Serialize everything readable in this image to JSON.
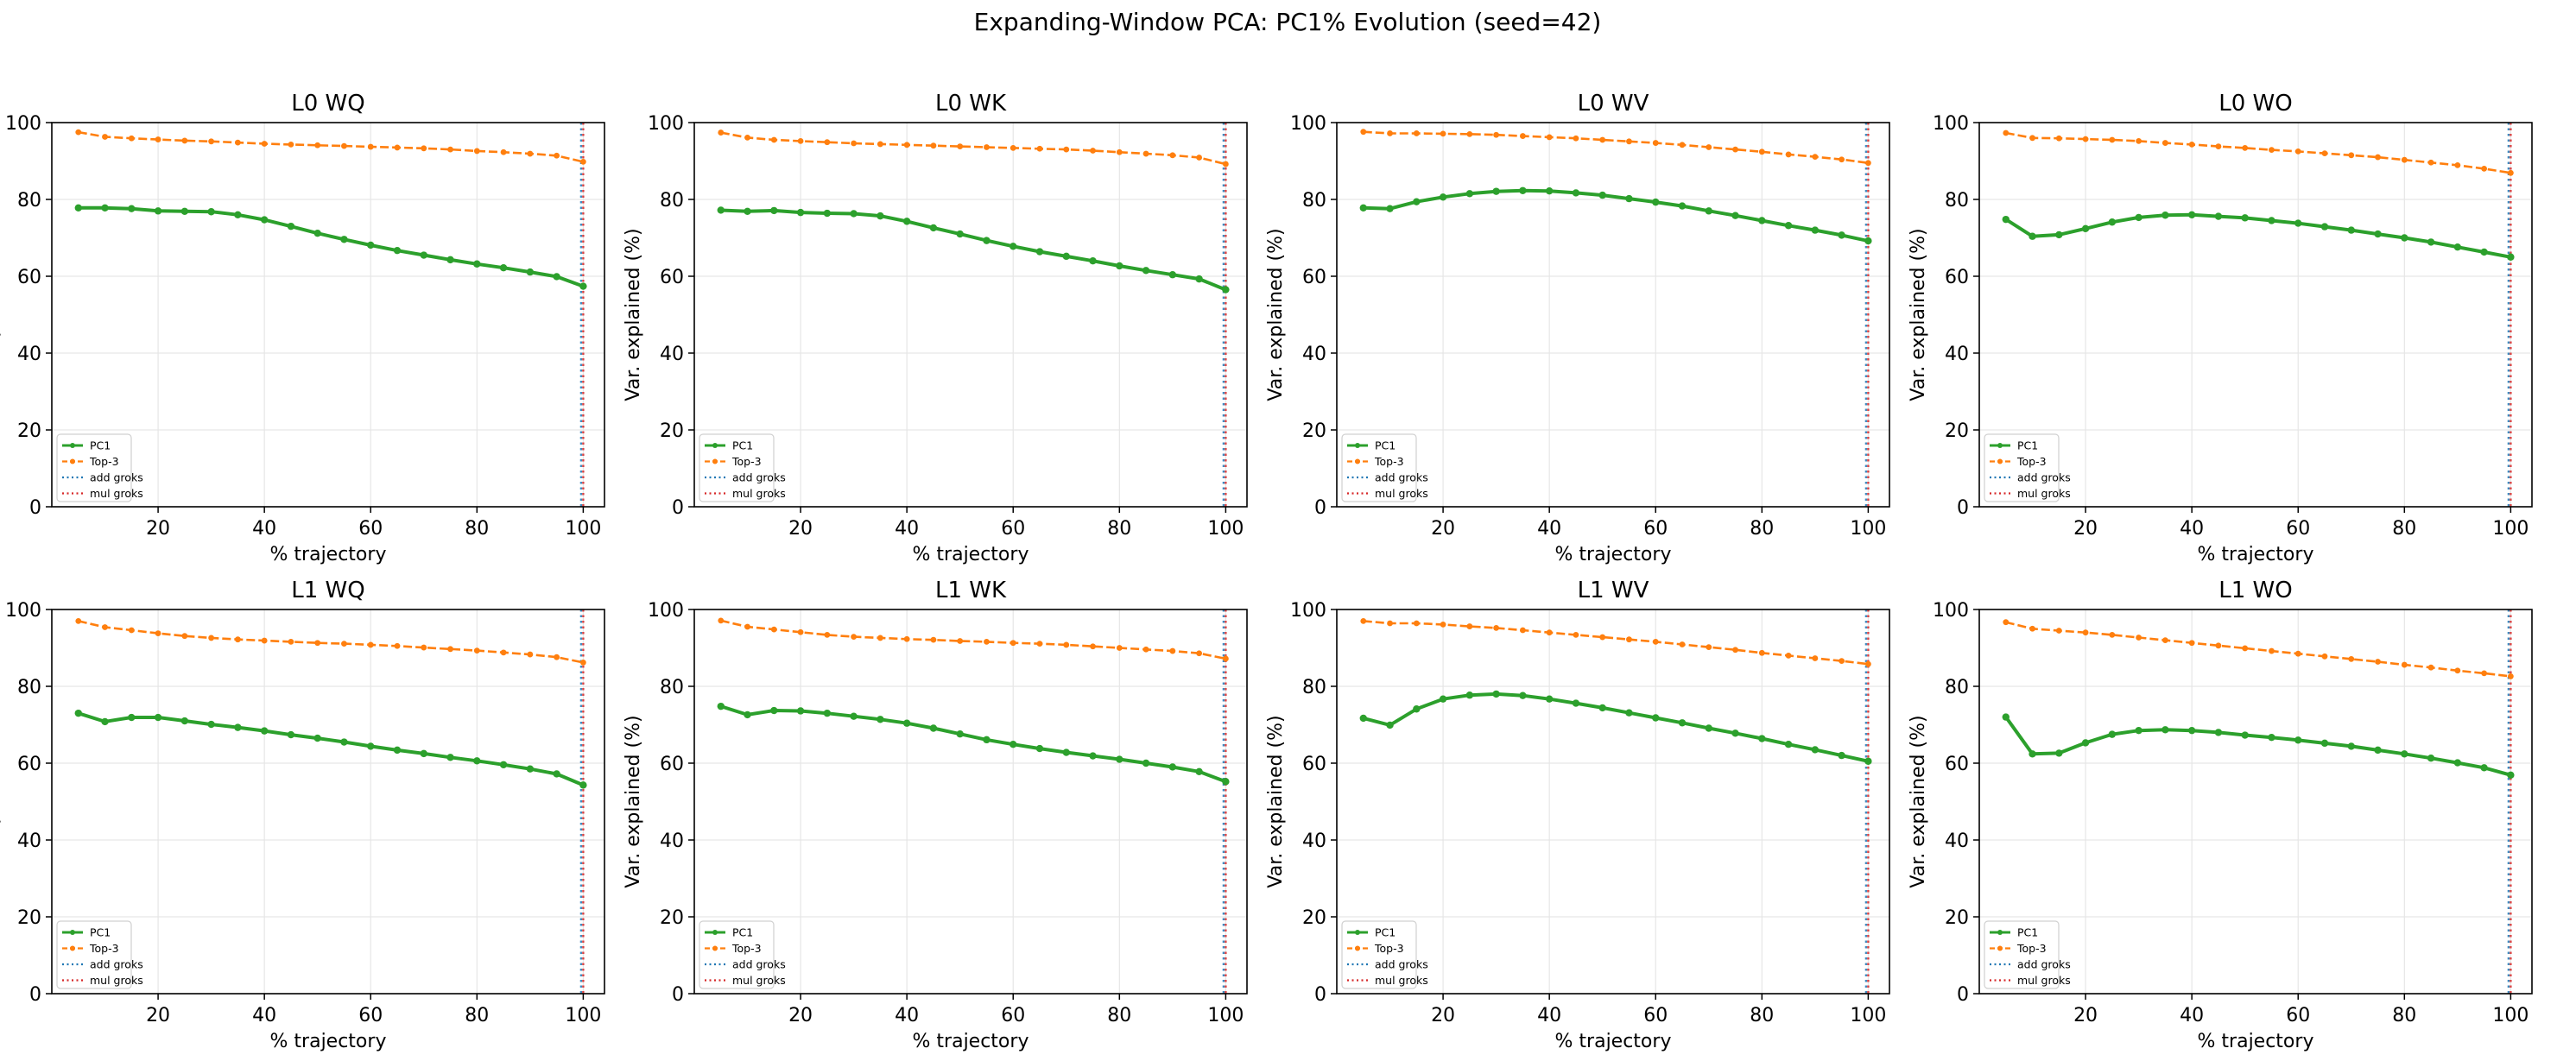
{
  "figure": {
    "suptitle": "Expanding-Window PCA: PC1% Evolution (seed=42)"
  },
  "colors": {
    "pc1": "#2ca02c",
    "top3": "#ff7f0e",
    "add_groks": "#1f77b4",
    "mul_groks": "#d62728",
    "grid": "#e6e6e6",
    "axes": "#000000"
  },
  "chart_data": [
    {
      "type": "line",
      "title": "L0 WQ",
      "xlabel": "% trajectory",
      "ylabel": "Var. explained (%)",
      "xlim": [
        0,
        104
      ],
      "ylim": [
        0,
        100
      ],
      "xticks": [
        20,
        40,
        60,
        80,
        100
      ],
      "yticks": [
        0,
        20,
        40,
        60,
        80,
        100
      ],
      "grid": true,
      "legend": {
        "placement": "lower-left",
        "entries": [
          "PC1",
          "Top-3",
          "add groks",
          "mul groks"
        ]
      },
      "x": [
        5,
        10,
        15,
        20,
        25,
        30,
        35,
        40,
        45,
        50,
        55,
        60,
        65,
        70,
        75,
        80,
        85,
        90,
        95,
        100
      ],
      "series": [
        {
          "name": "PC1",
          "values": [
            77.8,
            77.8,
            77.6,
            77.0,
            76.9,
            76.8,
            76.0,
            74.7,
            73.0,
            71.2,
            69.6,
            68.1,
            66.7,
            65.5,
            64.3,
            63.2,
            62.2,
            61.1,
            59.9,
            57.4
          ]
        },
        {
          "name": "Top-3",
          "values": [
            97.5,
            96.3,
            95.9,
            95.6,
            95.3,
            95.1,
            94.8,
            94.5,
            94.3,
            94.1,
            93.9,
            93.7,
            93.5,
            93.3,
            93.0,
            92.6,
            92.3,
            91.9,
            91.4,
            89.8
          ]
        }
      ],
      "vlines": [
        {
          "name": "add groks",
          "x": 99.6
        },
        {
          "name": "mul groks",
          "x": 100.0
        }
      ]
    },
    {
      "type": "line",
      "title": "L0 WK",
      "xlabel": "% trajectory",
      "ylabel": "Var. explained (%)",
      "xlim": [
        0,
        104
      ],
      "ylim": [
        0,
        100
      ],
      "xticks": [
        20,
        40,
        60,
        80,
        100
      ],
      "yticks": [
        0,
        20,
        40,
        60,
        80,
        100
      ],
      "grid": true,
      "legend": {
        "placement": "lower-left",
        "entries": [
          "PC1",
          "Top-3",
          "add groks",
          "mul groks"
        ]
      },
      "x": [
        5,
        10,
        15,
        20,
        25,
        30,
        35,
        40,
        45,
        50,
        55,
        60,
        65,
        70,
        75,
        80,
        85,
        90,
        95,
        100
      ],
      "series": [
        {
          "name": "PC1",
          "values": [
            77.2,
            76.9,
            77.1,
            76.6,
            76.4,
            76.3,
            75.7,
            74.3,
            72.6,
            71.0,
            69.3,
            67.8,
            66.4,
            65.2,
            64.0,
            62.7,
            61.5,
            60.4,
            59.3,
            56.5
          ]
        },
        {
          "name": "Top-3",
          "values": [
            97.4,
            96.1,
            95.5,
            95.2,
            94.9,
            94.6,
            94.4,
            94.2,
            94.0,
            93.8,
            93.6,
            93.4,
            93.2,
            93.0,
            92.7,
            92.3,
            91.9,
            91.5,
            90.9,
            89.2
          ]
        }
      ],
      "vlines": [
        {
          "name": "add groks",
          "x": 99.6
        },
        {
          "name": "mul groks",
          "x": 100.0
        }
      ]
    },
    {
      "type": "line",
      "title": "L0 WV",
      "xlabel": "% trajectory",
      "ylabel": "Var. explained (%)",
      "xlim": [
        0,
        104
      ],
      "ylim": [
        0,
        100
      ],
      "xticks": [
        20,
        40,
        60,
        80,
        100
      ],
      "yticks": [
        0,
        20,
        40,
        60,
        80,
        100
      ],
      "grid": true,
      "legend": {
        "placement": "lower-left",
        "entries": [
          "PC1",
          "Top-3",
          "add groks",
          "mul groks"
        ]
      },
      "x": [
        5,
        10,
        15,
        20,
        25,
        30,
        35,
        40,
        45,
        50,
        55,
        60,
        65,
        70,
        75,
        80,
        85,
        90,
        95,
        100
      ],
      "series": [
        {
          "name": "PC1",
          "values": [
            77.8,
            77.6,
            79.4,
            80.6,
            81.5,
            82.1,
            82.3,
            82.2,
            81.7,
            81.1,
            80.2,
            79.3,
            78.3,
            77.0,
            75.8,
            74.5,
            73.2,
            72.0,
            70.7,
            69.2
          ]
        },
        {
          "name": "Top-3",
          "values": [
            97.6,
            97.2,
            97.2,
            97.1,
            97.0,
            96.8,
            96.5,
            96.2,
            95.9,
            95.5,
            95.1,
            94.7,
            94.2,
            93.6,
            93.0,
            92.4,
            91.7,
            91.1,
            90.4,
            89.5
          ]
        }
      ],
      "vlines": [
        {
          "name": "add groks",
          "x": 99.6
        },
        {
          "name": "mul groks",
          "x": 100.0
        }
      ]
    },
    {
      "type": "line",
      "title": "L0 WO",
      "xlabel": "% trajectory",
      "ylabel": "Var. explained (%)",
      "xlim": [
        0,
        104
      ],
      "ylim": [
        0,
        100
      ],
      "xticks": [
        20,
        40,
        60,
        80,
        100
      ],
      "yticks": [
        0,
        20,
        40,
        60,
        80,
        100
      ],
      "grid": true,
      "legend": {
        "placement": "lower-left",
        "entries": [
          "PC1",
          "Top-3",
          "add groks",
          "mul groks"
        ]
      },
      "x": [
        5,
        10,
        15,
        20,
        25,
        30,
        35,
        40,
        45,
        50,
        55,
        60,
        65,
        70,
        75,
        80,
        85,
        90,
        95,
        100
      ],
      "series": [
        {
          "name": "PC1",
          "values": [
            74.8,
            70.4,
            70.8,
            72.4,
            74.1,
            75.3,
            75.9,
            76.0,
            75.6,
            75.2,
            74.5,
            73.8,
            72.9,
            72.0,
            71.0,
            70.0,
            68.9,
            67.6,
            66.3,
            65.0
          ]
        },
        {
          "name": "Top-3",
          "values": [
            97.3,
            96.0,
            95.9,
            95.7,
            95.5,
            95.2,
            94.7,
            94.3,
            93.8,
            93.4,
            92.9,
            92.5,
            92.0,
            91.5,
            91.0,
            90.3,
            89.6,
            88.9,
            88.0,
            86.9
          ]
        }
      ],
      "vlines": [
        {
          "name": "add groks",
          "x": 99.6
        },
        {
          "name": "mul groks",
          "x": 100.0
        }
      ]
    },
    {
      "type": "line",
      "title": "L1 WQ",
      "xlabel": "% trajectory",
      "ylabel": "Var. explained (%)",
      "xlim": [
        0,
        104
      ],
      "ylim": [
        0,
        100
      ],
      "xticks": [
        20,
        40,
        60,
        80,
        100
      ],
      "yticks": [
        0,
        20,
        40,
        60,
        80,
        100
      ],
      "grid": true,
      "legend": {
        "placement": "lower-left",
        "entries": [
          "PC1",
          "Top-3",
          "add groks",
          "mul groks"
        ]
      },
      "x": [
        5,
        10,
        15,
        20,
        25,
        30,
        35,
        40,
        45,
        50,
        55,
        60,
        65,
        70,
        75,
        80,
        85,
        90,
        95,
        100
      ],
      "series": [
        {
          "name": "PC1",
          "values": [
            73.0,
            70.8,
            71.9,
            71.9,
            71.0,
            70.1,
            69.3,
            68.4,
            67.4,
            66.5,
            65.5,
            64.4,
            63.4,
            62.5,
            61.5,
            60.6,
            59.6,
            58.5,
            57.2,
            54.3
          ]
        },
        {
          "name": "Top-3",
          "values": [
            97.0,
            95.4,
            94.6,
            93.8,
            93.1,
            92.6,
            92.2,
            91.9,
            91.6,
            91.3,
            91.1,
            90.8,
            90.5,
            90.1,
            89.7,
            89.3,
            88.8,
            88.3,
            87.6,
            86.2
          ]
        }
      ],
      "vlines": [
        {
          "name": "add groks",
          "x": 99.6
        },
        {
          "name": "mul groks",
          "x": 100.0
        }
      ]
    },
    {
      "type": "line",
      "title": "L1 WK",
      "xlabel": "% trajectory",
      "ylabel": "Var. explained (%)",
      "xlim": [
        0,
        104
      ],
      "ylim": [
        0,
        100
      ],
      "xticks": [
        20,
        40,
        60,
        80,
        100
      ],
      "yticks": [
        0,
        20,
        40,
        60,
        80,
        100
      ],
      "grid": true,
      "legend": {
        "placement": "lower-left",
        "entries": [
          "PC1",
          "Top-3",
          "add groks",
          "mul groks"
        ]
      },
      "x": [
        5,
        10,
        15,
        20,
        25,
        30,
        35,
        40,
        45,
        50,
        55,
        60,
        65,
        70,
        75,
        80,
        85,
        90,
        95,
        100
      ],
      "series": [
        {
          "name": "PC1",
          "values": [
            74.8,
            72.6,
            73.7,
            73.6,
            73.0,
            72.2,
            71.4,
            70.4,
            69.1,
            67.6,
            66.1,
            64.9,
            63.8,
            62.8,
            61.9,
            61.0,
            60.0,
            59.0,
            57.8,
            55.2
          ]
        },
        {
          "name": "Top-3",
          "values": [
            97.1,
            95.5,
            94.8,
            94.1,
            93.4,
            92.9,
            92.6,
            92.3,
            92.1,
            91.8,
            91.6,
            91.3,
            91.1,
            90.8,
            90.4,
            90.0,
            89.6,
            89.2,
            88.6,
            87.2
          ]
        }
      ],
      "vlines": [
        {
          "name": "add groks",
          "x": 99.6
        },
        {
          "name": "mul groks",
          "x": 100.0
        }
      ]
    },
    {
      "type": "line",
      "title": "L1 WV",
      "xlabel": "% trajectory",
      "ylabel": "Var. explained (%)",
      "xlim": [
        0,
        104
      ],
      "ylim": [
        0,
        100
      ],
      "xticks": [
        20,
        40,
        60,
        80,
        100
      ],
      "yticks": [
        0,
        20,
        40,
        60,
        80,
        100
      ],
      "grid": true,
      "legend": {
        "placement": "lower-left",
        "entries": [
          "PC1",
          "Top-3",
          "add groks",
          "mul groks"
        ]
      },
      "x": [
        5,
        10,
        15,
        20,
        25,
        30,
        35,
        40,
        45,
        50,
        55,
        60,
        65,
        70,
        75,
        80,
        85,
        90,
        95,
        100
      ],
      "series": [
        {
          "name": "PC1",
          "values": [
            71.7,
            69.9,
            74.1,
            76.7,
            77.7,
            78.0,
            77.6,
            76.7,
            75.6,
            74.4,
            73.1,
            71.8,
            70.5,
            69.1,
            67.8,
            66.4,
            64.9,
            63.5,
            62.0,
            60.5
          ]
        },
        {
          "name": "Top-3",
          "values": [
            97.0,
            96.4,
            96.4,
            96.1,
            95.6,
            95.2,
            94.6,
            94.0,
            93.4,
            92.8,
            92.2,
            91.6,
            90.9,
            90.2,
            89.5,
            88.7,
            88.0,
            87.3,
            86.6,
            85.8
          ]
        }
      ],
      "vlines": [
        {
          "name": "add groks",
          "x": 99.6
        },
        {
          "name": "mul groks",
          "x": 100.0
        }
      ]
    },
    {
      "type": "line",
      "title": "L1 WO",
      "xlabel": "% trajectory",
      "ylabel": "Var. explained (%)",
      "xlim": [
        0,
        104
      ],
      "ylim": [
        0,
        100
      ],
      "xticks": [
        20,
        40,
        60,
        80,
        100
      ],
      "yticks": [
        0,
        20,
        40,
        60,
        80,
        100
      ],
      "grid": true,
      "legend": {
        "placement": "lower-left",
        "entries": [
          "PC1",
          "Top-3",
          "add groks",
          "mul groks"
        ]
      },
      "x": [
        5,
        10,
        15,
        20,
        25,
        30,
        35,
        40,
        45,
        50,
        55,
        60,
        65,
        70,
        75,
        80,
        85,
        90,
        95,
        100
      ],
      "series": [
        {
          "name": "PC1",
          "values": [
            72.0,
            62.4,
            62.6,
            65.3,
            67.5,
            68.5,
            68.7,
            68.5,
            68.0,
            67.3,
            66.7,
            66.0,
            65.2,
            64.4,
            63.4,
            62.4,
            61.3,
            60.1,
            58.8,
            56.9
          ]
        },
        {
          "name": "Top-3",
          "values": [
            96.7,
            95.0,
            94.5,
            94.0,
            93.4,
            92.7,
            92.0,
            91.3,
            90.6,
            89.9,
            89.2,
            88.5,
            87.8,
            87.1,
            86.4,
            85.6,
            84.9,
            84.1,
            83.4,
            82.6
          ]
        }
      ],
      "vlines": [
        {
          "name": "add groks",
          "x": 99.6
        },
        {
          "name": "mul groks",
          "x": 100.0
        }
      ]
    }
  ]
}
